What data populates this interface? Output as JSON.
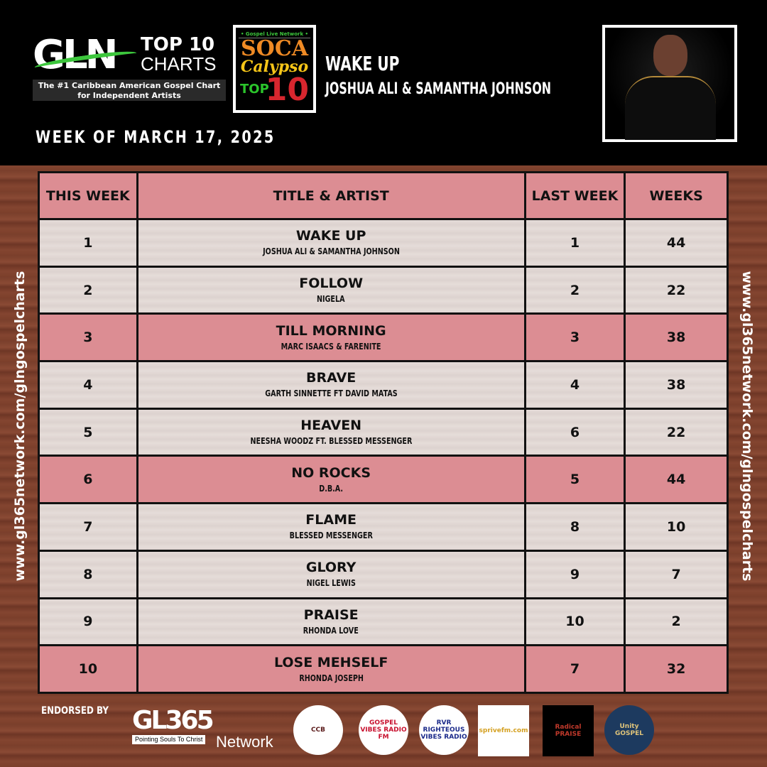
{
  "header": {
    "logo_gln": "GLN",
    "logo_top10": "TOP 10",
    "logo_charts": "CHARTS",
    "logo_tagline": "The #1 Caribbean American Gospel Chart for Independent Artists",
    "soca_network": "• Gospel Live Network •",
    "soca_soca": "SOCA",
    "soca_calypso": "Calypso",
    "soca_top": "TOP",
    "soca_10": "10",
    "featured_title": "WAKE UP",
    "featured_artist": "JOSHUA ALI & SAMANTHA JOHNSON",
    "week_of": "WEEK OF MARCH 17, 2025"
  },
  "side_text": "www.gl365network.com/glngospelcharts",
  "table": {
    "headers": [
      "THIS WEEK",
      "TITLE & ARTIST",
      "LAST WEEK",
      "WEEKS"
    ],
    "rows": [
      {
        "this_week": "1",
        "title": "WAKE UP",
        "artist": "JOSHUA ALI & SAMANTHA JOHNSON",
        "last_week": "1",
        "weeks": "44",
        "highlight": false
      },
      {
        "this_week": "2",
        "title": "FOLLOW",
        "artist": "NIGELA",
        "last_week": "2",
        "weeks": "22",
        "highlight": false
      },
      {
        "this_week": "3",
        "title": "TILL MORNING",
        "artist": "MARC ISAACS & FARENITE",
        "last_week": "3",
        "weeks": "38",
        "highlight": true
      },
      {
        "this_week": "4",
        "title": "BRAVE",
        "artist": "GARTH SINNETTE FT DAVID MATAS",
        "last_week": "4",
        "weeks": "38",
        "highlight": false
      },
      {
        "this_week": "5",
        "title": "HEAVEN",
        "artist": "NEESHA WOODZ FT. BLESSED MESSENGER",
        "last_week": "6",
        "weeks": "22",
        "highlight": false
      },
      {
        "this_week": "6",
        "title": "NO ROCKS",
        "artist": "D.B.A.",
        "last_week": "5",
        "weeks": "44",
        "highlight": true
      },
      {
        "this_week": "7",
        "title": "FLAME",
        "artist": "BLESSED MESSENGER",
        "last_week": "8",
        "weeks": "10",
        "highlight": false
      },
      {
        "this_week": "8",
        "title": "GLORY",
        "artist": "NIGEL LEWIS",
        "last_week": "9",
        "weeks": "7",
        "highlight": false
      },
      {
        "this_week": "9",
        "title": "PRAISE",
        "artist": "RHONDA LOVE",
        "last_week": "10",
        "weeks": "2",
        "highlight": false
      },
      {
        "this_week": "10",
        "title": "LOSE MEHSELF",
        "artist": "RHONDA JOSEPH",
        "last_week": "7",
        "weeks": "32",
        "highlight": true
      }
    ]
  },
  "footer": {
    "endorsed_by": "ENDORSED BY",
    "gl365_logo": "GL365",
    "gl365_tagline": "Pointing Souls To Christ",
    "gl365_network": "Network",
    "partners": [
      {
        "name": "CCB",
        "bg": "#ffffff",
        "fg": "#5a1a1a"
      },
      {
        "name": "GOSPEL VIBES RADIO FM",
        "bg": "#ffffff",
        "fg": "#c8102e"
      },
      {
        "name": "RVR RIGHTEOUS VIBES RADIO",
        "bg": "#ffffff",
        "fg": "#1b2a8a"
      },
      {
        "name": "sprivefm.com",
        "bg": "#ffffff",
        "fg": "#d4a020"
      },
      {
        "name": "Radical PRAISE",
        "bg": "#000000",
        "fg": "#c0392b"
      },
      {
        "name": "Unity GOSPEL",
        "bg": "#1d3a5f",
        "fg": "#e0c47a"
      }
    ]
  },
  "colors": {
    "header_bg": "#000000",
    "highlight_row": "#dc8d93",
    "light_row": "#e2d9d6",
    "wood": "#7a3f2c"
  }
}
